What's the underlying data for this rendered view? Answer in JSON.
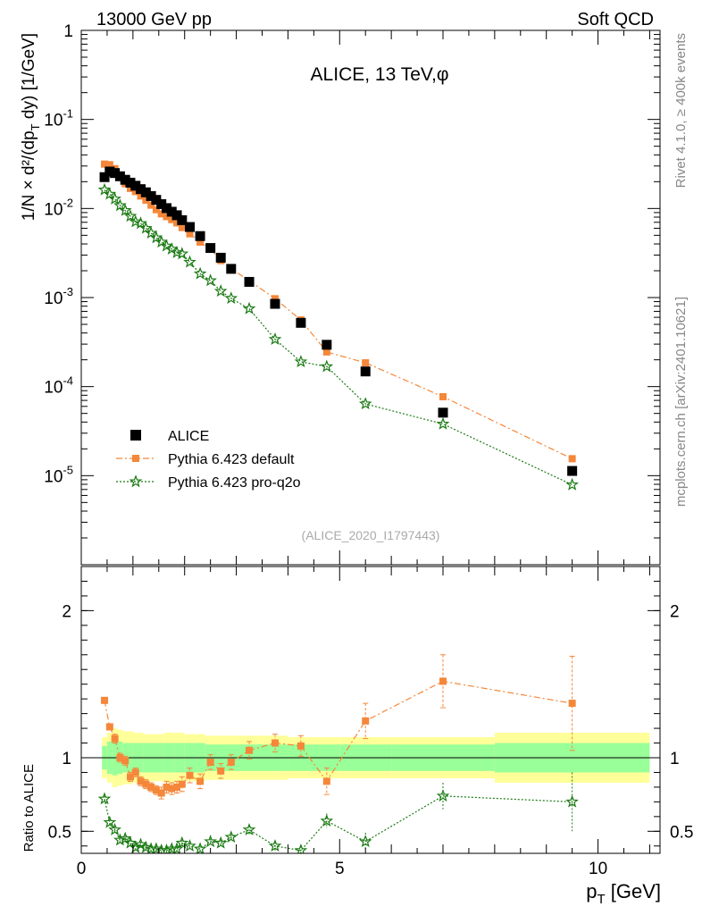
{
  "header": {
    "left": "13000 GeV pp",
    "right": "Soft QCD"
  },
  "side": {
    "rivet": "Rivet 4.1.0, ≥ 400k events",
    "mcplots": "mcplots.cern.ch [arXiv:2401.10621]"
  },
  "colors": {
    "data": "#000000",
    "default": "#f4873a",
    "proq2o": "#1a7a12",
    "band_outer": "#ffff99",
    "band_inner": "#99ff99"
  },
  "chart_data": [
    {
      "type": "scatter",
      "title": "ALICE, 13 TeV,φ",
      "ylabel": "1/N × d²/(dp_T dy) [1/GeV]",
      "xlabel": "p_T [GeV]",
      "yscale": "log",
      "xlim": [
        0,
        11.2
      ],
      "ylim": [
        1e-06,
        1
      ],
      "y_ticks": [
        {
          "value": 1,
          "label": "1"
        },
        {
          "value": 0.1,
          "label": "10^-1"
        },
        {
          "value": 0.01,
          "label": "10^-2"
        },
        {
          "value": 0.001,
          "label": "10^-3"
        },
        {
          "value": 0.0001,
          "label": "10^-4"
        },
        {
          "value": 1e-05,
          "label": "10^-5"
        }
      ],
      "analysis_tag": "(ALICE_2020_I1797443)",
      "legend": [
        "ALICE",
        "Pythia 6.423 default",
        "Pythia 6.423 pro-q2o"
      ],
      "x": [
        0.45,
        0.55,
        0.65,
        0.75,
        0.85,
        0.95,
        1.05,
        1.15,
        1.25,
        1.35,
        1.45,
        1.55,
        1.65,
        1.75,
        1.85,
        1.95,
        2.1,
        2.3,
        2.5,
        2.7,
        2.9,
        3.25,
        3.75,
        4.25,
        4.75,
        5.5,
        7.0,
        9.5
      ],
      "series": [
        {
          "name": "ALICE",
          "marker": "square",
          "values": [
            0.0225,
            0.026,
            0.025,
            0.023,
            0.021,
            0.0195,
            0.018,
            0.0165,
            0.0152,
            0.0138,
            0.0125,
            0.0112,
            0.0101,
            0.0092,
            0.0084,
            0.0074,
            0.0062,
            0.0049,
            0.0036,
            0.0028,
            0.0021,
            0.0015,
            0.00085,
            0.00052,
            0.000295,
            0.000148,
            5.1e-05,
            1.13e-05
          ]
        },
        {
          "name": "Pythia 6.423 default",
          "marker": "square-small",
          "values": [
            0.0315,
            0.031,
            0.028,
            0.0235,
            0.019,
            0.0168,
            0.0155,
            0.0138,
            0.0124,
            0.0109,
            0.0097,
            0.0087,
            0.0081,
            0.0075,
            0.0069,
            0.0061,
            0.0052,
            0.0042,
            0.0035,
            0.0026,
            0.0021,
            0.00155,
            0.00097,
            0.00056,
            0.000245,
            0.000185,
            7.7e-05,
            1.55e-05
          ]
        },
        {
          "name": "Pythia 6.423 pro-q2o",
          "marker": "star",
          "values": [
            0.0162,
            0.0145,
            0.0128,
            0.0108,
            0.0095,
            0.0082,
            0.0071,
            0.0068,
            0.006,
            0.0053,
            0.0047,
            0.0042,
            0.0038,
            0.0035,
            0.0032,
            0.0031,
            0.0025,
            0.00185,
            0.00155,
            0.00118,
            0.00098,
            0.00075,
            0.00034,
            0.00019,
            0.000168,
            6.4e-05,
            3.8e-05,
            7.9e-06
          ]
        }
      ]
    },
    {
      "type": "line",
      "title": "",
      "ylabel": "Ratio to ALICE",
      "xlabel": "p_T [GeV]",
      "xlim": [
        0,
        11.2
      ],
      "ylim": [
        0.35,
        2.3
      ],
      "x_ticks": [
        0,
        5,
        10
      ],
      "y_ticks": [
        0.5,
        1,
        2
      ],
      "x": [
        0.45,
        0.55,
        0.65,
        0.75,
        0.85,
        0.95,
        1.05,
        1.15,
        1.25,
        1.35,
        1.45,
        1.55,
        1.65,
        1.75,
        1.85,
        1.95,
        2.1,
        2.3,
        2.5,
        2.7,
        2.9,
        3.25,
        3.75,
        4.25,
        4.75,
        5.5,
        7.0,
        9.5
      ],
      "band": {
        "edges": [
          0.4,
          0.5,
          0.6,
          0.7,
          0.8,
          1.0,
          1.2,
          1.4,
          1.6,
          1.8,
          2.0,
          2.4,
          3.0,
          4.0,
          5.0,
          6.0,
          8.0,
          11.0
        ],
        "outer_half": [
          0.14,
          0.17,
          0.2,
          0.19,
          0.18,
          0.17,
          0.16,
          0.16,
          0.17,
          0.17,
          0.16,
          0.15,
          0.15,
          0.14,
          0.14,
          0.14,
          0.17
        ],
        "inner_half": [
          0.08,
          0.11,
          0.12,
          0.11,
          0.1,
          0.1,
          0.1,
          0.1,
          0.1,
          0.1,
          0.1,
          0.09,
          0.09,
          0.09,
          0.09,
          0.09,
          0.1
        ]
      },
      "series": [
        {
          "name": "Pythia 6.423 default",
          "values": [
            1.39,
            1.21,
            1.13,
            1.0,
            0.98,
            0.87,
            0.9,
            0.84,
            0.82,
            0.8,
            0.78,
            0.76,
            0.8,
            0.79,
            0.8,
            0.82,
            0.88,
            0.84,
            0.97,
            0.91,
            0.97,
            1.05,
            1.1,
            1.08,
            0.84,
            1.25,
            1.52,
            1.37
          ],
          "errors": [
            0.02,
            0.02,
            0.03,
            0.03,
            0.03,
            0.03,
            0.03,
            0.03,
            0.03,
            0.03,
            0.03,
            0.04,
            0.04,
            0.04,
            0.04,
            0.05,
            0.05,
            0.05,
            0.05,
            0.05,
            0.05,
            0.06,
            0.06,
            0.07,
            0.09,
            0.12,
            0.18,
            0.32
          ]
        },
        {
          "name": "Pythia 6.423 pro-q2o",
          "values": [
            0.72,
            0.56,
            0.51,
            0.44,
            0.45,
            0.42,
            0.39,
            0.41,
            0.39,
            0.38,
            0.38,
            0.37,
            0.37,
            0.38,
            0.38,
            0.42,
            0.4,
            0.38,
            0.43,
            0.42,
            0.46,
            0.51,
            0.4,
            0.37,
            0.57,
            0.43,
            0.74,
            0.7
          ]
        },
        {
          "name": "ALICE ratio",
          "values": [
            1,
            1,
            1,
            1,
            1,
            1,
            1,
            1,
            1,
            1,
            1,
            1,
            1,
            1,
            1,
            1,
            1,
            1,
            1,
            1,
            1,
            1,
            1,
            1,
            1,
            1,
            1,
            1
          ]
        }
      ],
      "pro_errors": [
        0.02,
        0.02,
        0.02,
        0.02,
        0.02,
        0.02,
        0.02,
        0.02,
        0.02,
        0.02,
        0.02,
        0.02,
        0.02,
        0.02,
        0.02,
        0.02,
        0.02,
        0.02,
        0.02,
        0.02,
        0.02,
        0.03,
        0.03,
        0.03,
        0.05,
        0.06,
        0.09,
        0.2
      ]
    }
  ]
}
